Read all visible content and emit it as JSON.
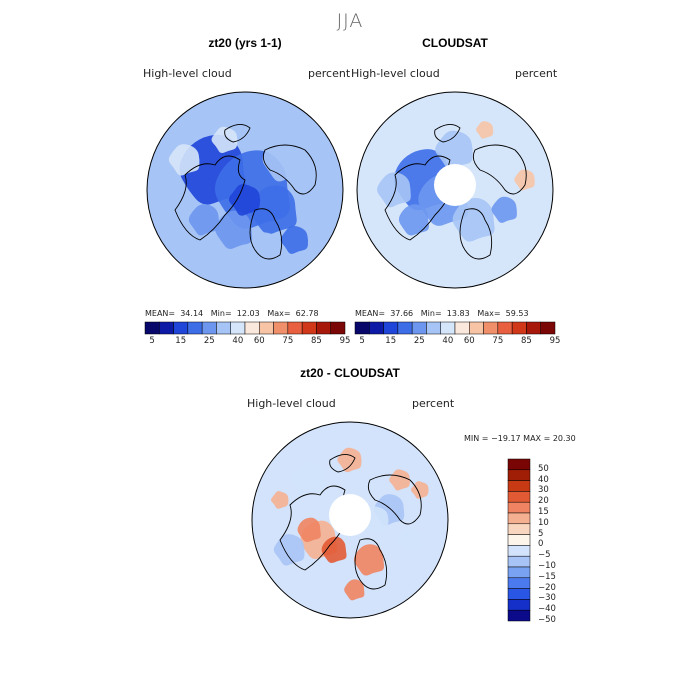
{
  "title": "JJA",
  "colors": {
    "abs": [
      "#08086b",
      "#0d1aa6",
      "#1f45d9",
      "#3d6ee8",
      "#6d97ef",
      "#a6c4f5",
      "#d6e6fa",
      "#fbe8dc",
      "#f7c4a6",
      "#f0906b",
      "#e8603f",
      "#d1381a",
      "#a8180a",
      "#7a0606"
    ],
    "diff": [
      "#0a0a8a",
      "#1430c8",
      "#2a56e6",
      "#4a7aee",
      "#7aa2f2",
      "#a8c4f6",
      "#d2e3fb",
      "#fdf4ea",
      "#f9d6bf",
      "#f5b092",
      "#f08462",
      "#e25a34",
      "#c83a14",
      "#a01e06",
      "#7a0505"
    ]
  },
  "panels": [
    {
      "title": "zt20 (yrs 1-1)",
      "left_label": "High-level cloud",
      "right_label": "percent",
      "stats": {
        "mean_label": "MEAN=",
        "mean": "34.14",
        "min_label": "Min=",
        "min": "12.03",
        "max_label": "Max=",
        "max": "62.78"
      },
      "has_hole": false
    },
    {
      "title": "CLOUDSAT",
      "left_label": "High-level cloud",
      "right_label": "percent",
      "stats": {
        "mean_label": "MEAN=",
        "mean": "37.66",
        "min_label": "Min=",
        "min": "13.83",
        "max_label": "Max=",
        "max": "59.53"
      },
      "has_hole": true
    }
  ],
  "abs_ticks": [
    "5",
    "15",
    "25",
    "40",
    "60",
    "75",
    "85",
    "95"
  ],
  "diff_panel": {
    "title": "zt20 - CLOUDSAT",
    "left_label": "High-level cloud",
    "right_label": "percent",
    "minmax": "MIN = −19.17  MAX =   20.30"
  },
  "diff_ticks": [
    "50",
    "40",
    "30",
    "20",
    "15",
    "10",
    "5",
    "0",
    "−5",
    "−10",
    "−15",
    "−20",
    "−30",
    "−40",
    "−50"
  ],
  "chart_data": {
    "type": "heatmap",
    "title": "JJA",
    "variable": "High-level cloud",
    "units": "percent",
    "projection": "north polar stereographic",
    "maps": [
      {
        "name": "zt20 (yrs 1-1)",
        "mean": 34.14,
        "min": 12.03,
        "max": 62.78
      },
      {
        "name": "CLOUDSAT",
        "mean": 37.66,
        "min": 13.83,
        "max": 59.53
      },
      {
        "name": "zt20 - CLOUDSAT",
        "min": -19.17,
        "max": 20.3
      }
    ],
    "abs_levels": [
      5,
      15,
      25,
      40,
      60,
      75,
      85,
      95
    ],
    "diff_levels": [
      -50,
      -40,
      -30,
      -20,
      -15,
      -10,
      -5,
      0,
      5,
      10,
      15,
      20,
      30,
      40,
      50
    ]
  }
}
